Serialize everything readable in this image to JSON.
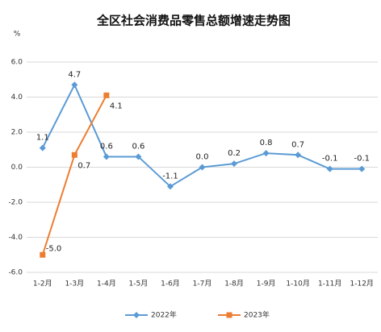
{
  "chart_data": {
    "type": "line",
    "title": "全区社会消费品零售总额增速走势图",
    "y_label": "%",
    "categories": [
      "1-2月",
      "1-3月",
      "1-4月",
      "1-5月",
      "1-6月",
      "1-7月",
      "1-8月",
      "1-9月",
      "1-10月",
      "1-11月",
      "1-12月"
    ],
    "series": [
      {
        "name": "2022年",
        "color": "#5b9bd5",
        "marker": "diamond",
        "values": [
          1.1,
          4.7,
          0.6,
          0.6,
          -1.1,
          0.0,
          0.2,
          0.8,
          0.7,
          -0.1,
          -0.1
        ],
        "value_labels": [
          "1.1",
          "4.7",
          "0.6",
          "0.6",
          "-1.1",
          "0.0",
          "0.2",
          "0.8",
          "0.7",
          "-0.1",
          "-0.1"
        ]
      },
      {
        "name": "2023年",
        "color": "#ed7d31",
        "marker": "square",
        "values": [
          -5.0,
          0.7,
          4.1,
          null,
          null,
          null,
          null,
          null,
          null,
          null,
          null
        ],
        "value_labels": [
          "-5.0",
          "0.7",
          "4.1",
          null,
          null,
          null,
          null,
          null,
          null,
          null,
          null
        ]
      }
    ],
    "ylim": [
      -6,
      6
    ],
    "yticks": [
      {
        "value": 6,
        "label": "6.0"
      },
      {
        "value": 4,
        "label": "4.0"
      },
      {
        "value": 2,
        "label": "2.0"
      },
      {
        "value": 0,
        "label": "0.0"
      },
      {
        "value": -2,
        "label": "-2.0"
      },
      {
        "value": -4,
        "label": "-4.0"
      },
      {
        "value": -6,
        "label": "-6.0"
      }
    ],
    "grid": true,
    "legend": "bottom"
  }
}
